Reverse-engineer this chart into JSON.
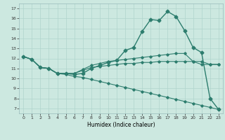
{
  "xlabel": "Humidex (Indice chaleur)",
  "xlim": [
    -0.5,
    23.5
  ],
  "ylim": [
    6.5,
    17.5
  ],
  "xticks": [
    0,
    1,
    2,
    3,
    4,
    5,
    6,
    7,
    8,
    9,
    10,
    11,
    12,
    13,
    14,
    15,
    16,
    17,
    18,
    19,
    20,
    21,
    22,
    23
  ],
  "yticks": [
    7,
    8,
    9,
    10,
    11,
    12,
    13,
    14,
    15,
    16,
    17
  ],
  "bg_color": "#cce8e0",
  "line_color": "#2d7d6e",
  "grid_color": "#b0d4cc",
  "series": [
    {
      "x": [
        0,
        1,
        2,
        3,
        4,
        5,
        6,
        7,
        8,
        9,
        10,
        11,
        12,
        13,
        14,
        15,
        16,
        17,
        18,
        19,
        20,
        21,
        22,
        23
      ],
      "y": [
        12.2,
        11.9,
        11.1,
        11.0,
        10.5,
        10.5,
        10.4,
        10.5,
        11.0,
        11.3,
        11.6,
        11.8,
        12.8,
        13.1,
        14.7,
        15.9,
        15.8,
        16.7,
        16.2,
        14.8,
        13.1,
        12.6,
        8.0,
        6.9
      ],
      "marker": "D",
      "markersize": 2.5,
      "linewidth": 1.0
    },
    {
      "x": [
        0,
        1,
        2,
        3,
        4,
        5,
        6,
        7,
        8,
        9,
        10,
        11,
        12,
        13,
        14,
        15,
        16,
        17,
        18,
        19,
        20,
        21,
        22,
        23
      ],
      "y": [
        12.2,
        11.9,
        11.1,
        11.0,
        10.5,
        10.5,
        10.5,
        10.9,
        11.3,
        11.5,
        11.7,
        11.8,
        11.9,
        12.0,
        12.1,
        12.2,
        12.3,
        12.4,
        12.5,
        12.5,
        11.7,
        11.4,
        11.4,
        11.4
      ],
      "marker": "D",
      "markersize": 1.8,
      "linewidth": 0.8
    },
    {
      "x": [
        0,
        1,
        2,
        3,
        4,
        5,
        6,
        7,
        8,
        9,
        10,
        11,
        12,
        13,
        14,
        15,
        16,
        17,
        18,
        19,
        20,
        21,
        22,
        23
      ],
      "y": [
        12.2,
        11.9,
        11.1,
        11.0,
        10.5,
        10.5,
        10.5,
        10.8,
        11.1,
        11.2,
        11.3,
        11.4,
        11.5,
        11.5,
        11.6,
        11.6,
        11.7,
        11.7,
        11.7,
        11.7,
        11.7,
        11.7,
        11.4,
        11.4
      ],
      "marker": "D",
      "markersize": 1.8,
      "linewidth": 0.8
    },
    {
      "x": [
        0,
        1,
        2,
        3,
        4,
        5,
        6,
        7,
        8,
        9,
        10,
        11,
        12,
        13,
        14,
        15,
        16,
        17,
        18,
        19,
        20,
        21,
        22,
        23
      ],
      "y": [
        12.2,
        11.9,
        11.1,
        11.0,
        10.5,
        10.4,
        10.2,
        10.1,
        9.9,
        9.7,
        9.5,
        9.3,
        9.1,
        8.9,
        8.7,
        8.5,
        8.3,
        8.1,
        7.9,
        7.7,
        7.5,
        7.3,
        7.1,
        6.9
      ],
      "marker": "D",
      "markersize": 1.8,
      "linewidth": 0.8
    }
  ]
}
